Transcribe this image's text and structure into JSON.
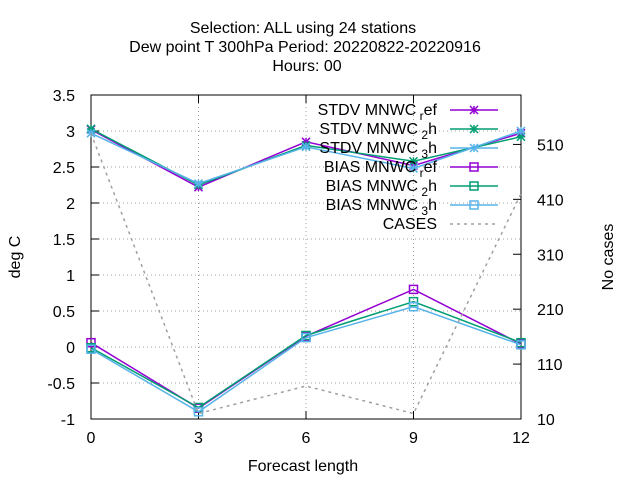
{
  "chart_data": {
    "type": "line",
    "title_lines": [
      "Selection: ALL using    24 stations",
      "Dew point T 300hPa   Period: 20220822-20220916",
      "Hours:  00"
    ],
    "xlabel": "Forecast length",
    "ylabel": "deg C",
    "y2label": "No cases",
    "x": [
      0,
      3,
      6,
      9,
      12
    ],
    "xlim": [
      0,
      12
    ],
    "ylim": [
      -1,
      3.5
    ],
    "y2lim": [
      10,
      600
    ],
    "x_ticks": [
      "0",
      "3",
      "6",
      "9",
      "12"
    ],
    "y_ticks": [
      "-1",
      "-0.5",
      "0",
      "0.5",
      "1",
      "1.5",
      "2",
      "2.5",
      "3",
      "3.5"
    ],
    "y2_ticks": [
      "10",
      "110",
      "210",
      "310",
      "410",
      "510"
    ],
    "grid": true,
    "legend_position": "top-right",
    "series": [
      {
        "name": "STDV MNWC_ref",
        "legend_main": "STDV MNWC",
        "legend_sub": "r",
        "legend_tail": "ef",
        "values": [
          3.02,
          2.22,
          2.85,
          2.52,
          2.97
        ],
        "color": "#9400d3",
        "marker": "x-star",
        "axis": "y1",
        "style": "solid"
      },
      {
        "name": "STDV MNWC_2h",
        "legend_main": "STDV MNWC",
        "legend_sub": "2",
        "legend_tail": "h",
        "values": [
          3.03,
          2.25,
          2.8,
          2.58,
          2.92
        ],
        "color": "#009e73",
        "marker": "x-star",
        "axis": "y1",
        "style": "solid"
      },
      {
        "name": "STDV MNWC_3h",
        "legend_main": "STDV MNWC",
        "legend_sub": "3",
        "legend_tail": "h",
        "values": [
          2.97,
          2.27,
          2.78,
          2.48,
          3.0
        ],
        "color": "#56b4e9",
        "marker": "x-star",
        "axis": "y1",
        "style": "solid"
      },
      {
        "name": "BIAS MNWC_ref",
        "legend_main": "BIAS MNWC",
        "legend_sub": "r",
        "legend_tail": "ef",
        "values": [
          0.06,
          -0.85,
          0.15,
          0.8,
          0.04
        ],
        "color": "#9400d3",
        "marker": "square",
        "axis": "y1",
        "style": "solid"
      },
      {
        "name": "BIAS MNWC_2h",
        "legend_main": "BIAS MNWC",
        "legend_sub": "2",
        "legend_tail": "h",
        "values": [
          -0.01,
          -0.84,
          0.16,
          0.63,
          0.06
        ],
        "color": "#009e73",
        "marker": "square",
        "axis": "y1",
        "style": "solid"
      },
      {
        "name": "BIAS MNWC_3h",
        "legend_main": "BIAS MNWC",
        "legend_sub": "3",
        "legend_tail": "h",
        "values": [
          -0.03,
          -0.9,
          0.13,
          0.56,
          0.03
        ],
        "color": "#56b4e9",
        "marker": "square",
        "axis": "y1",
        "style": "solid"
      },
      {
        "name": "CASES",
        "legend_main": "CASES",
        "legend_sub": "",
        "legend_tail": "",
        "values": [
          530,
          20,
          70,
          20,
          420
        ],
        "color": "#a0a0a0",
        "marker": "none",
        "axis": "y2",
        "style": "dashed"
      }
    ]
  }
}
